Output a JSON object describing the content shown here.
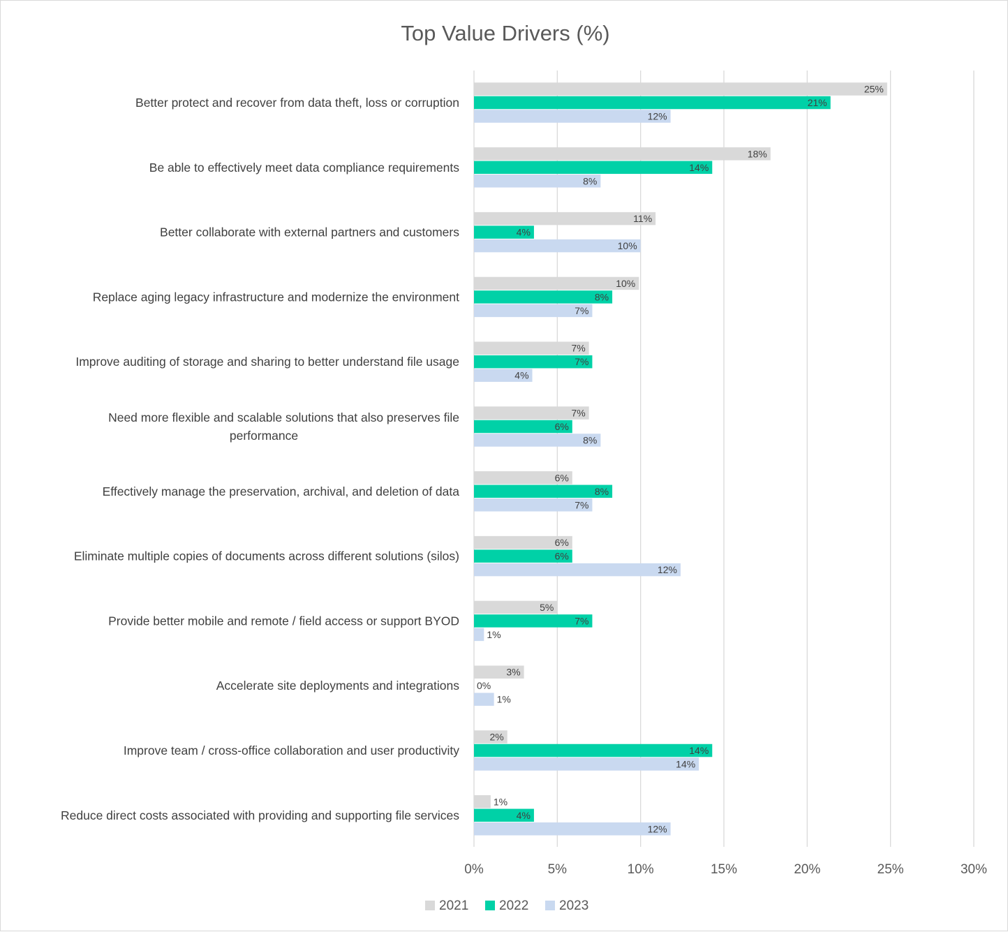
{
  "chart_data": {
    "type": "bar",
    "orientation": "horizontal",
    "title": "Top Value Drivers (%)",
    "categories": [
      [
        "Better protect and recover from data theft, loss or corruption"
      ],
      [
        "Be able to effectively meet data compliance requirements"
      ],
      [
        "Better collaborate with external partners and customers"
      ],
      [
        "Replace aging legacy infrastructure and modernize the environment"
      ],
      [
        "Improve auditing of storage and sharing to better understand file usage"
      ],
      [
        "Need more flexible and scalable solutions that also preserves file",
        "performance"
      ],
      [
        "Effectively manage the preservation, archival, and deletion of data"
      ],
      [
        "Eliminate multiple copies of documents across different solutions (silos)"
      ],
      [
        "Provide better mobile and remote / field access or support BYOD"
      ],
      [
        "Accelerate site deployments and integrations"
      ],
      [
        "Improve team / cross-office collaboration and user productivity"
      ],
      [
        "Reduce direct costs associated with providing and supporting file services"
      ]
    ],
    "series": [
      {
        "name": "2021",
        "color": "#d9d9d9",
        "values": [
          24.8,
          17.8,
          10.9,
          9.9,
          6.9,
          6.9,
          5.9,
          5.9,
          5.0,
          3.0,
          2.0,
          1.0
        ],
        "labels": [
          "25%",
          "18%",
          "11%",
          "10%",
          "7%",
          "7%",
          "6%",
          "6%",
          "5%",
          "3%",
          "2%",
          "1%"
        ]
      },
      {
        "name": "2022",
        "color": "#00d1a7",
        "values": [
          21.4,
          14.3,
          3.6,
          8.3,
          7.1,
          5.9,
          8.3,
          5.9,
          7.1,
          0.0,
          14.3,
          3.6
        ],
        "labels": [
          "21%",
          "14%",
          "4%",
          "8%",
          "7%",
          "6%",
          "8%",
          "6%",
          "7%",
          "0%",
          "14%",
          "4%"
        ]
      },
      {
        "name": "2023",
        "color": "#c9d9f0",
        "values": [
          11.8,
          7.6,
          10.0,
          7.1,
          3.5,
          7.6,
          7.1,
          12.4,
          0.6,
          1.2,
          13.5,
          11.8
        ],
        "labels": [
          "12%",
          "8%",
          "10%",
          "7%",
          "4%",
          "8%",
          "7%",
          "12%",
          "1%",
          "1%",
          "14%",
          "12%"
        ]
      }
    ],
    "xlim": [
      0,
      30
    ],
    "xticks": [
      0,
      5,
      10,
      15,
      20,
      25,
      30
    ],
    "xtick_labels": [
      "0%",
      "5%",
      "10%",
      "15%",
      "20%",
      "25%",
      "30%"
    ],
    "grid": true,
    "legend": "bottom"
  }
}
